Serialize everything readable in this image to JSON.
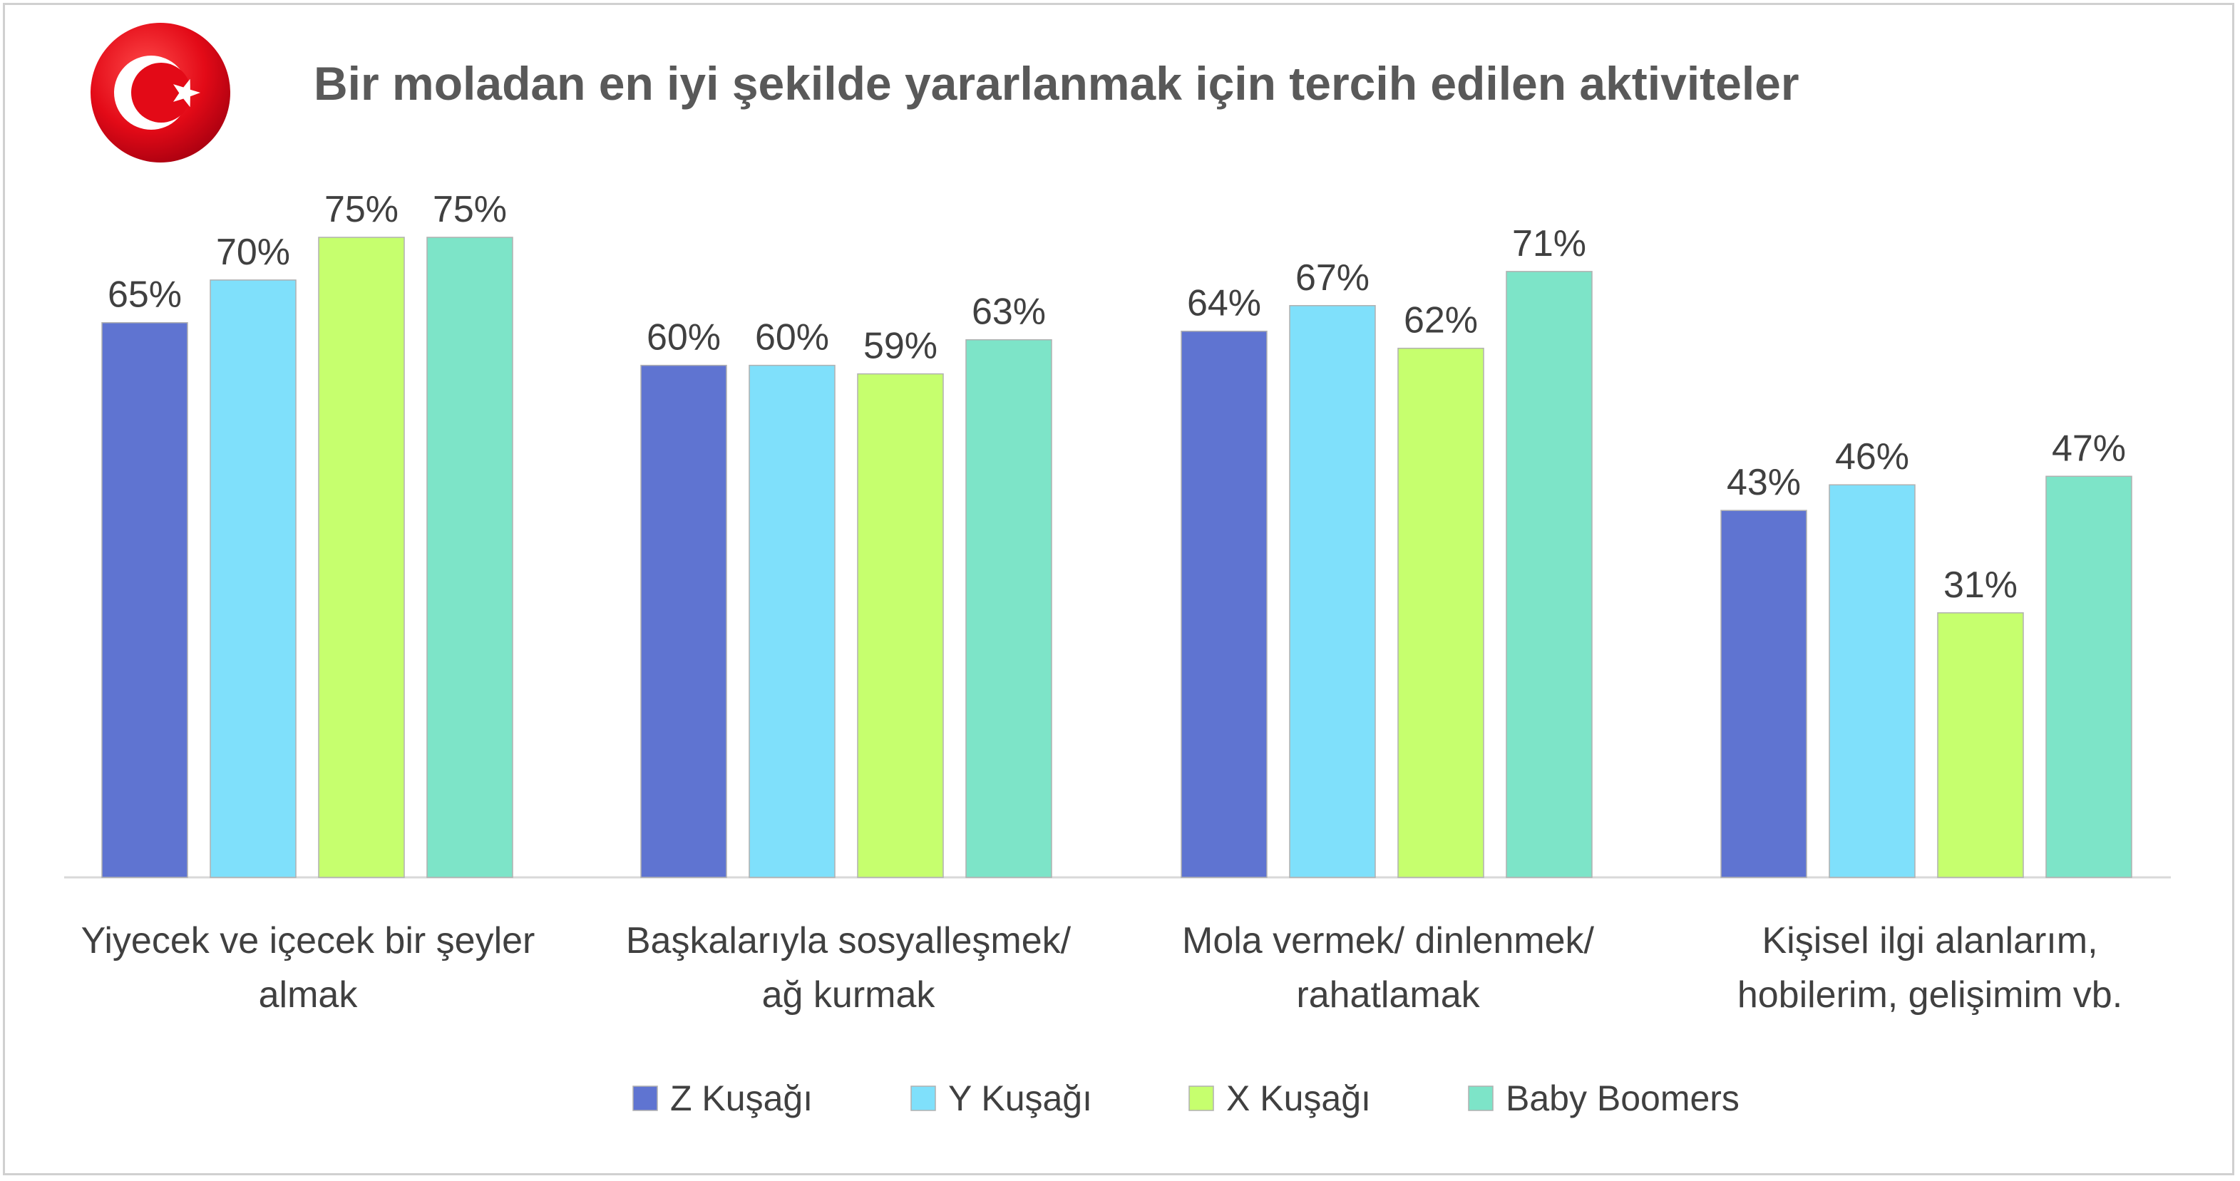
{
  "chart_data": {
    "type": "bar",
    "title": "Bir moladan en iyi şekilde yararlanmak için tercih edilen aktiviteler",
    "categories": [
      [
        "Yiyecek ve içecek bir şeyler",
        "almak"
      ],
      [
        "Başkalarıyla sosyalleşmek/",
        "ağ kurmak"
      ],
      [
        "Mola vermek/ dinlenmek/",
        "rahatlamak"
      ],
      [
        "Kişisel ilgi alanlarım,",
        "hobilerim, gelişimim vb."
      ]
    ],
    "series": [
      {
        "name": "Z Kuşağı",
        "color": "#5f74d1",
        "values": [
          65,
          60,
          64,
          43
        ]
      },
      {
        "name": "Y Kuşağı",
        "color": "#7fe0fb",
        "values": [
          70,
          60,
          67,
          46
        ]
      },
      {
        "name": "X Kuşağı",
        "color": "#c6ff6e",
        "values": [
          75,
          59,
          62,
          31
        ]
      },
      {
        "name": "Baby Boomers",
        "color": "#7de4c8",
        "values": [
          75,
          63,
          71,
          47
        ]
      }
    ],
    "value_suffix": "%",
    "ylim": [
      0,
      75
    ],
    "grid": false,
    "legend_position": "bottom",
    "flag_icon": "turkey-flag-icon",
    "flag_color": "#e30a17"
  }
}
